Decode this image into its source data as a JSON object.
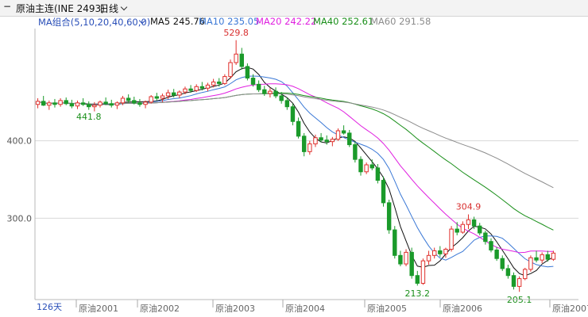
{
  "header": {
    "collapse_label": "−",
    "instrument": "原油主连(INE 2493)",
    "period": "日线"
  },
  "ma_legend": {
    "group": "MA组合(5,10,20,40,60,0)",
    "items": [
      {
        "label": "MA5",
        "value": "245.76",
        "color": "#111111"
      },
      {
        "label": "MA10",
        "value": "235.05",
        "color": "#3a78d6"
      },
      {
        "label": "MA20",
        "value": "242.22",
        "color": "#e020e0"
      },
      {
        "label": "MA40",
        "value": "252.61",
        "color": "#1a8f1a"
      },
      {
        "label": "MA60",
        "value": "291.58",
        "color": "#8c8c8c"
      }
    ]
  },
  "footer": {
    "bar_count": "126天"
  },
  "chart_data": {
    "type": "candlestick",
    "y_ticks": [
      400.0,
      300.0
    ],
    "y_tick_labels": [
      "400.0",
      "300.0"
    ],
    "ylim": [
      195,
      545
    ],
    "x_labels": [
      "原油2001",
      "原油2002",
      "原油2003",
      "原油2004",
      "原油2005",
      "原油2006",
      "原油2007"
    ],
    "colors": {
      "up": "#e0302c",
      "down": "#1a9a2a",
      "grid": "#d8d8d8"
    },
    "candles": [
      [
        447,
        455,
        442,
        451
      ],
      [
        451,
        458,
        445,
        446
      ],
      [
        446,
        452,
        440,
        449
      ],
      [
        449,
        454,
        443,
        447
      ],
      [
        447,
        455,
        444,
        452
      ],
      [
        452,
        456,
        446,
        448
      ],
      [
        448,
        453,
        442,
        445
      ],
      [
        445,
        452,
        441,
        449
      ],
      [
        449,
        455,
        445,
        447
      ],
      [
        447,
        451,
        440,
        444
      ],
      [
        444,
        450,
        438,
        446
      ],
      [
        446,
        452,
        443,
        450
      ],
      [
        450,
        456,
        446,
        448
      ],
      [
        448,
        453,
        443,
        446
      ],
      [
        446,
        451,
        441,
        449
      ],
      [
        449,
        458,
        446,
        455
      ],
      [
        455,
        460,
        449,
        452
      ],
      [
        452,
        457,
        447,
        449
      ],
      [
        449,
        454,
        444,
        447
      ],
      [
        447,
        452,
        442,
        450
      ],
      [
        450,
        459,
        448,
        457
      ],
      [
        457,
        462,
        452,
        455
      ],
      [
        455,
        461,
        450,
        458
      ],
      [
        458,
        466,
        454,
        462
      ],
      [
        462,
        467,
        456,
        459
      ],
      [
        459,
        465,
        455,
        463
      ],
      [
        463,
        470,
        460,
        467
      ],
      [
        467,
        472,
        462,
        465
      ],
      [
        465,
        473,
        463,
        470
      ],
      [
        470,
        476,
        465,
        468
      ],
      [
        468,
        475,
        464,
        472
      ],
      [
        472,
        480,
        469,
        476
      ],
      [
        476,
        481,
        470,
        474
      ],
      [
        474,
        486,
        472,
        483
      ],
      [
        483,
        505,
        480,
        501
      ],
      [
        501,
        530,
        498,
        512
      ],
      [
        512,
        520,
        492,
        496
      ],
      [
        496,
        500,
        478,
        481
      ],
      [
        481,
        486,
        470,
        473
      ],
      [
        473,
        478,
        463,
        466
      ],
      [
        466,
        471,
        458,
        461
      ],
      [
        461,
        468,
        456,
        464
      ],
      [
        464,
        469,
        455,
        458
      ],
      [
        458,
        463,
        448,
        452
      ],
      [
        452,
        456,
        440,
        444
      ],
      [
        444,
        448,
        420,
        425
      ],
      [
        425,
        430,
        403,
        406
      ],
      [
        406,
        410,
        380,
        386
      ],
      [
        386,
        400,
        382,
        396
      ],
      [
        396,
        408,
        392,
        404
      ],
      [
        404,
        410,
        398,
        401
      ],
      [
        401,
        407,
        395,
        399
      ],
      [
        399,
        405,
        393,
        402
      ],
      [
        402,
        416,
        400,
        413
      ],
      [
        413,
        420,
        408,
        410
      ],
      [
        410,
        414,
        392,
        395
      ],
      [
        395,
        399,
        372,
        376
      ],
      [
        376,
        380,
        355,
        360
      ],
      [
        360,
        372,
        357,
        369
      ],
      [
        369,
        376,
        362,
        365
      ],
      [
        365,
        370,
        345,
        349
      ],
      [
        349,
        354,
        315,
        320
      ],
      [
        320,
        324,
        280,
        285
      ],
      [
        285,
        290,
        248,
        252
      ],
      [
        252,
        258,
        238,
        241
      ],
      [
        241,
        260,
        238,
        256
      ],
      [
        256,
        262,
        222,
        226
      ],
      [
        226,
        232,
        213,
        216
      ],
      [
        216,
        248,
        214,
        245
      ],
      [
        245,
        258,
        240,
        252
      ],
      [
        252,
        262,
        248,
        258
      ],
      [
        258,
        264,
        250,
        254
      ],
      [
        254,
        262,
        249,
        260
      ],
      [
        260,
        290,
        257,
        286
      ],
      [
        286,
        295,
        278,
        282
      ],
      [
        282,
        296,
        280,
        292
      ],
      [
        292,
        305,
        286,
        298
      ],
      [
        298,
        302,
        286,
        290
      ],
      [
        290,
        294,
        278,
        281
      ],
      [
        281,
        284,
        266,
        270
      ],
      [
        270,
        274,
        256,
        259
      ],
      [
        259,
        263,
        245,
        248
      ],
      [
        248,
        252,
        232,
        235
      ],
      [
        235,
        240,
        222,
        226
      ],
      [
        226,
        230,
        208,
        212
      ],
      [
        212,
        225,
        205,
        222
      ],
      [
        222,
        236,
        220,
        234
      ],
      [
        234,
        252,
        231,
        249
      ],
      [
        249,
        258,
        243,
        246
      ],
      [
        246,
        256,
        242,
        253
      ],
      [
        253,
        258,
        244,
        247
      ],
      [
        247,
        258,
        245,
        255
      ]
    ],
    "labels": [
      {
        "text": "529.8",
        "kind": "high",
        "index": 35,
        "value": 529.8
      },
      {
        "text": "441.8",
        "kind": "low",
        "index": 9,
        "value": 441.8
      },
      {
        "text": "304.9",
        "kind": "high",
        "index": 76,
        "value": 304.9
      },
      {
        "text": "213.2",
        "kind": "low",
        "index": 67,
        "value": 213.2
      },
      {
        "text": "205.1",
        "kind": "low",
        "index": 85,
        "value": 205.1
      }
    ]
  }
}
